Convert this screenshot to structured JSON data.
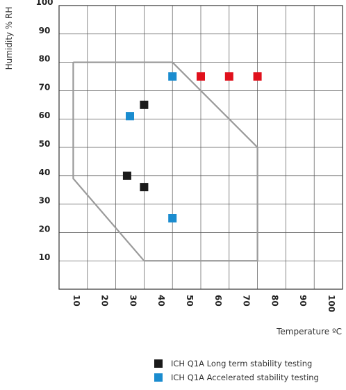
{
  "chart_data": {
    "type": "scatter",
    "xlabel": "Temperature ºC",
    "ylabel": "Humidity % RH",
    "xlim": [
      0,
      100
    ],
    "ylim": [
      0,
      100
    ],
    "xticks": [
      "10",
      "20",
      "30",
      "40",
      "50",
      "60",
      "70",
      "80",
      "90",
      "100"
    ],
    "yticks": [
      "10",
      "20",
      "30",
      "40",
      "50",
      "60",
      "70",
      "80",
      "90",
      "100"
    ],
    "grid": true,
    "legend_position": "bottom-right",
    "region_outline": {
      "color": "#9a9a9a",
      "points": [
        [
          5,
          80
        ],
        [
          40,
          80
        ],
        [
          70,
          50
        ],
        [
          70,
          10
        ],
        [
          30,
          10
        ],
        [
          5,
          39
        ],
        [
          5,
          80
        ]
      ]
    },
    "series": [
      {
        "name": "ICH Q1A Long term stability testing",
        "color": "#1a1a1a",
        "points": [
          [
            30,
            65
          ],
          [
            24,
            40
          ],
          [
            30,
            36
          ]
        ]
      },
      {
        "name": "ICH Q1A Accelerated stability testing",
        "color": "#1a8ccf",
        "points": [
          [
            40,
            75
          ],
          [
            25,
            61
          ],
          [
            40,
            25
          ]
        ]
      },
      {
        "name": "",
        "color": "#e0101c",
        "points": [
          [
            50,
            75
          ],
          [
            60,
            75
          ],
          [
            70,
            75
          ]
        ]
      }
    ]
  }
}
